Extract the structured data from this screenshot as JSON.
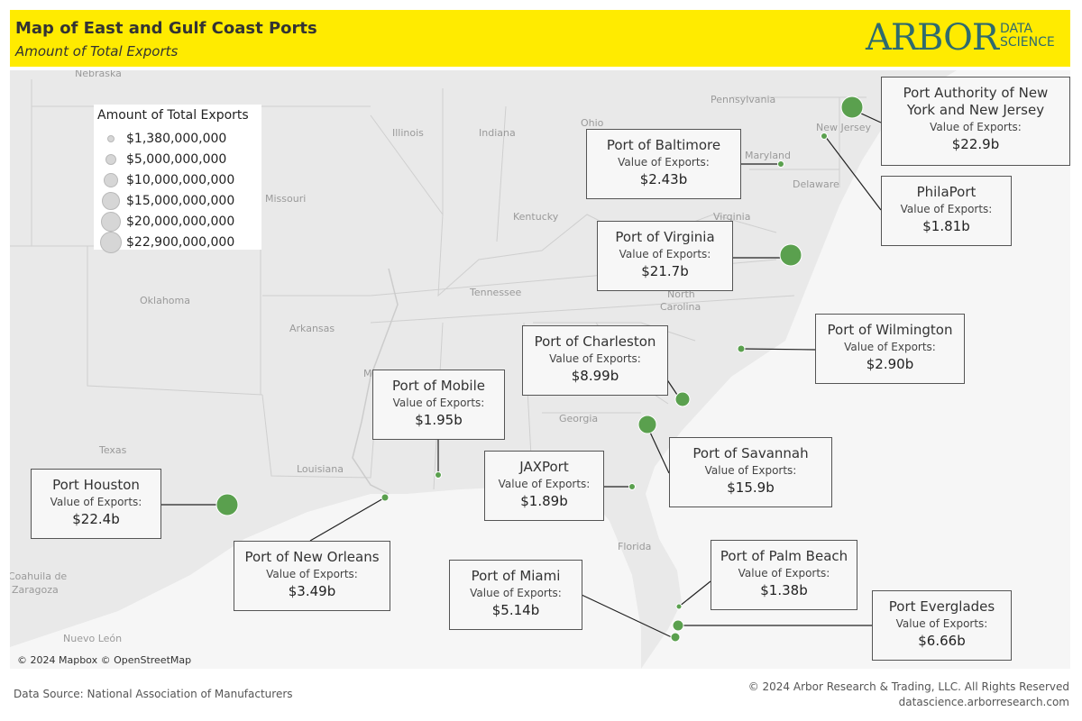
{
  "header": {
    "title": "Map of East and Gulf Coast Ports",
    "subtitle": "Amount of Total Exports",
    "logo_main": "ARBOR",
    "logo_sub_1": "DATA",
    "logo_sub_2": "SCIENCE"
  },
  "legend": {
    "title": "Amount of Total Exports",
    "items": [
      "$1,380,000,000",
      "$5,000,000,000",
      "$10,000,000,000",
      "$15,000,000,000",
      "$20,000,000,000",
      "$22,900,000,000"
    ]
  },
  "state_labels": [
    "Nebraska",
    "Illinois",
    "Indiana",
    "Ohio",
    "Pennsylvania",
    "New Jersey",
    "Maryland",
    "Delaware",
    "Missouri",
    "Kentucky",
    "Virginia",
    "Oklahoma",
    "Arkansas",
    "Tennessee",
    "North",
    "Carolina",
    "Mississippi",
    "Georgia",
    "Texas",
    "Louisiana",
    "Florida",
    "Coahuila de",
    "Zaragoza",
    "Nuevo León"
  ],
  "ports": [
    {
      "name": "Port Authority of New York and New Jersey",
      "caption": "Value of Exports:",
      "value": "$22.9b",
      "exports_b": 22.9
    },
    {
      "name": "Port of Baltimore",
      "caption": "Value of Exports:",
      "value": "$2.43b",
      "exports_b": 2.43
    },
    {
      "name": "PhilaPort",
      "caption": "Value of Exports:",
      "value": "$1.81b",
      "exports_b": 1.81
    },
    {
      "name": "Port of Virginia",
      "caption": "Value of Exports:",
      "value": "$21.7b",
      "exports_b": 21.7
    },
    {
      "name": "Port of Wilmington",
      "caption": "Value of Exports:",
      "value": "$2.90b",
      "exports_b": 2.9
    },
    {
      "name": "Port of Charleston",
      "caption": "Value of Exports:",
      "value": "$8.99b",
      "exports_b": 8.99
    },
    {
      "name": "Port of Savannah",
      "caption": "Value of Exports:",
      "value": "$15.9b",
      "exports_b": 15.9
    },
    {
      "name": "JAXPort",
      "caption": "Value of Exports:",
      "value": "$1.89b",
      "exports_b": 1.89
    },
    {
      "name": "Port of Mobile",
      "caption": "Value of Exports:",
      "value": "$1.95b",
      "exports_b": 1.95
    },
    {
      "name": "Port of New Orleans",
      "caption": "Value of Exports:",
      "value": "$3.49b",
      "exports_b": 3.49
    },
    {
      "name": "Port Houston",
      "caption": "Value of Exports:",
      "value": "$22.4b",
      "exports_b": 22.4
    },
    {
      "name": "Port of Miami",
      "caption": "Value of Exports:",
      "value": "$5.14b",
      "exports_b": 5.14
    },
    {
      "name": "Port of Palm Beach",
      "caption": "Value of Exports:",
      "value": "$1.38b",
      "exports_b": 1.38
    },
    {
      "name": "Port Everglades",
      "caption": "Value of Exports:",
      "value": "$6.66b",
      "exports_b": 6.66
    }
  ],
  "colors": {
    "header_bg": "#ffeb00",
    "marker": "#5aa04e",
    "map_bg": "#e9e9e9",
    "logo": "#2f6b6e"
  },
  "attribution": "© 2024 Mapbox © OpenStreetMap",
  "footer": {
    "source": "Data Source: National Association of Manufacturers",
    "copyright": "© 2024 Arbor Research & Trading, LLC. All Rights Reserved",
    "url": "datascience.arborresearch.com"
  }
}
